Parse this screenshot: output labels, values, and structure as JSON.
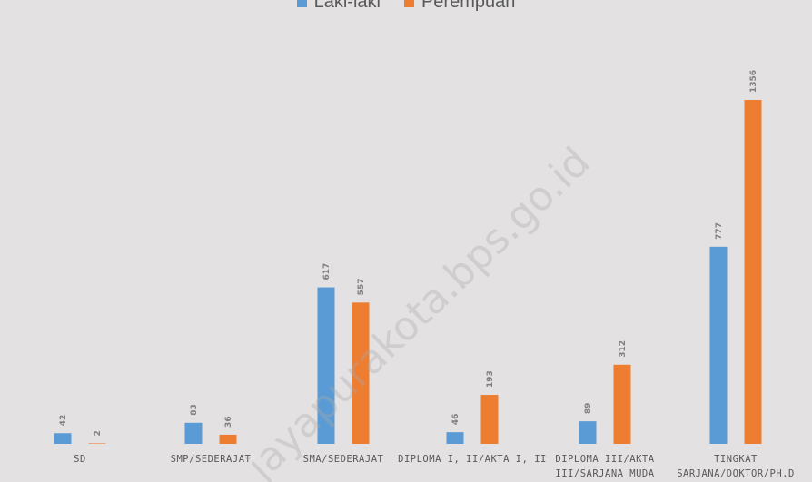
{
  "chart_data": {
    "type": "bar",
    "categories": [
      "SD",
      "SMP/SEDERAJAT",
      "SMA/SEDERAJAT",
      "DIPLOMA I, II/AKTA I, II",
      [
        "DIPLOMA III/AKTA",
        "III/SARJANA MUDA"
      ],
      [
        "TINGKAT",
        "SARJANA/DOKTOR/PH.D"
      ]
    ],
    "series": [
      {
        "name": "Laki-laki",
        "color": "#5b9bd5",
        "values": [
          42,
          83,
          617,
          46,
          89,
          777
        ]
      },
      {
        "name": "Perempuan",
        "color": "#ed7d31",
        "values": [
          2,
          36,
          557,
          193,
          312,
          1356
        ]
      }
    ],
    "ylim": [
      0,
      1450
    ],
    "legend_position": "top-center",
    "grid": false
  },
  "watermark": "jayapurakota.bps.go.id"
}
